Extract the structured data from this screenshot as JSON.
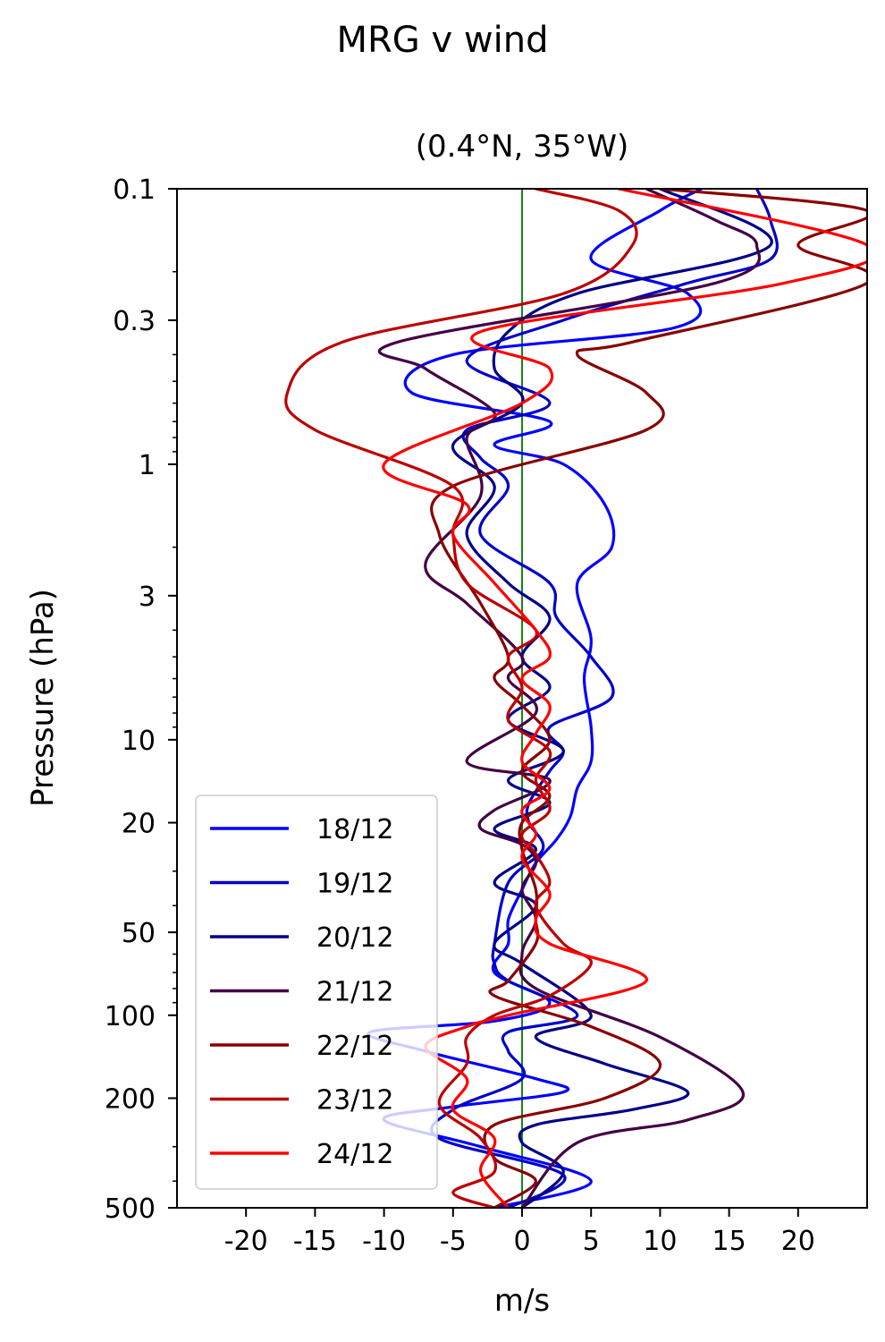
{
  "chart_data": {
    "type": "line",
    "title": "MRG v wind",
    "subtitle": "(0.4°N, 35°W)",
    "xlabel": "m/s",
    "ylabel": "Pressure (hPa)",
    "xlim": [
      -25,
      25
    ],
    "ylim": [
      500,
      0.1
    ],
    "yscale": "log",
    "y_inverted": true,
    "xticks": [
      -20,
      -15,
      -10,
      -5,
      0,
      5,
      10,
      15,
      20
    ],
    "xtick_labels": [
      "-20",
      "-15",
      "-10",
      "-5",
      "0",
      "5",
      "10",
      "15",
      "20"
    ],
    "yticks": [
      0.1,
      0.3,
      1,
      3,
      10,
      20,
      50,
      100,
      200,
      500
    ],
    "ytick_labels": [
      "0.1",
      "0.3",
      "1",
      "3",
      "10",
      "20",
      "50",
      "100",
      "200",
      "500"
    ],
    "zero_line": {
      "x": 0,
      "color": "#007700"
    },
    "grid": false,
    "legend_position": "lower-left",
    "series": [
      {
        "name": "18/12",
        "color": "#0000ff",
        "points": [
          [
            13,
            0.1
          ],
          [
            10,
            0.12
          ],
          [
            5,
            0.18
          ],
          [
            12,
            0.24
          ],
          [
            11,
            0.32
          ],
          [
            -5,
            0.4
          ],
          [
            -8,
            0.55
          ],
          [
            2,
            0.7
          ],
          [
            -2,
            0.85
          ],
          [
            3,
            1.0
          ],
          [
            6,
            1.4
          ],
          [
            6.5,
            2.0
          ],
          [
            4,
            2.7
          ],
          [
            5,
            4.3
          ],
          [
            4.5,
            6.0
          ],
          [
            5,
            9.0
          ],
          [
            5,
            12.0
          ],
          [
            4,
            15.0
          ],
          [
            3.5,
            19.0
          ],
          [
            2.5,
            23.0
          ],
          [
            1,
            28.0
          ],
          [
            0,
            35.0
          ],
          [
            -1,
            45.0
          ],
          [
            -1,
            55.0
          ],
          [
            -2,
            70.0
          ],
          [
            2,
            90.0
          ],
          [
            -2,
            105.0
          ],
          [
            -11,
            115.0
          ],
          [
            -7,
            135.0
          ],
          [
            1,
            170.0
          ],
          [
            3,
            190.0
          ],
          [
            -5,
            215.0
          ],
          [
            -10,
            240.0
          ],
          [
            -3,
            300.0
          ],
          [
            5,
            400.0
          ],
          [
            -2,
            500.0
          ]
        ]
      },
      {
        "name": "19/12",
        "color": "#0000cc",
        "points": [
          [
            17,
            0.1
          ],
          [
            18,
            0.13
          ],
          [
            18,
            0.18
          ],
          [
            12,
            0.22
          ],
          [
            3,
            0.3
          ],
          [
            -4,
            0.42
          ],
          [
            2,
            0.6
          ],
          [
            -4,
            0.75
          ],
          [
            -3,
            0.95
          ],
          [
            -1,
            1.2
          ],
          [
            -3,
            1.8
          ],
          [
            2,
            2.7
          ],
          [
            2.5,
            3.6
          ],
          [
            5,
            5.0
          ],
          [
            6.5,
            7.0
          ],
          [
            2,
            9.0
          ],
          [
            3,
            11.0
          ],
          [
            2,
            13.0
          ],
          [
            0.5,
            17.0
          ],
          [
            0.5,
            20.0
          ],
          [
            1.5,
            25.0
          ],
          [
            -1,
            33.0
          ],
          [
            -2,
            55.0
          ],
          [
            -2,
            65.0
          ],
          [
            -1,
            75.0
          ],
          [
            4,
            100.0
          ],
          [
            -1,
            115.0
          ],
          [
            -1,
            135.0
          ],
          [
            0,
            170.0
          ],
          [
            -5,
            220.0
          ],
          [
            -6,
            280.0
          ],
          [
            3,
            380.0
          ],
          [
            -1,
            500.0
          ]
        ]
      },
      {
        "name": "20/12",
        "color": "#000088",
        "points": [
          [
            10,
            0.1
          ],
          [
            18,
            0.16
          ],
          [
            4,
            0.24
          ],
          [
            -1,
            0.33
          ],
          [
            -2,
            0.45
          ],
          [
            0,
            0.6
          ],
          [
            -5,
            0.85
          ],
          [
            -2,
            1.2
          ],
          [
            -4,
            1.8
          ],
          [
            -1,
            2.7
          ],
          [
            2,
            3.6
          ],
          [
            0,
            5.0
          ],
          [
            2,
            6.5
          ],
          [
            -1,
            8.5
          ],
          [
            3,
            11.0
          ],
          [
            -1,
            14.0
          ],
          [
            2,
            17.0
          ],
          [
            -2,
            21.0
          ],
          [
            1,
            25.0
          ],
          [
            -2,
            33.0
          ],
          [
            1,
            40.0
          ],
          [
            -2,
            55.0
          ],
          [
            0,
            65.0
          ],
          [
            5,
            100.0
          ],
          [
            1,
            120.0
          ],
          [
            6,
            150.0
          ],
          [
            12,
            190.0
          ],
          [
            8,
            220.0
          ],
          [
            1,
            250.0
          ],
          [
            0,
            290.0
          ],
          [
            3,
            370.0
          ],
          [
            0,
            500.0
          ]
        ]
      },
      {
        "name": "21/12",
        "color": "#440044",
        "points": [
          [
            9,
            0.1
          ],
          [
            14,
            0.13
          ],
          [
            17,
            0.16
          ],
          [
            14,
            0.22
          ],
          [
            -9,
            0.36
          ],
          [
            -7,
            0.45
          ],
          [
            -2,
            0.65
          ],
          [
            -4,
            0.8
          ],
          [
            -3,
            1.3
          ],
          [
            -7,
            2.3
          ],
          [
            -4,
            3.2
          ],
          [
            0,
            5.0
          ],
          [
            -1,
            6.0
          ],
          [
            1,
            8.0
          ],
          [
            -4,
            12.0
          ],
          [
            2,
            14.0
          ],
          [
            -2,
            18.0
          ],
          [
            -3,
            21.0
          ],
          [
            0,
            24.0
          ],
          [
            1,
            28.0
          ],
          [
            0,
            35.0
          ],
          [
            1,
            45.0
          ],
          [
            0,
            60.0
          ],
          [
            1,
            80.0
          ],
          [
            10,
            120.0
          ],
          [
            16,
            190.0
          ],
          [
            12,
            240.0
          ],
          [
            4,
            290.0
          ],
          [
            0,
            500.0
          ]
        ]
      },
      {
        "name": "22/12",
        "color": "#880000",
        "points": [
          [
            10,
            0.1
          ],
          [
            25,
            0.12
          ],
          [
            20,
            0.16
          ],
          [
            25,
            0.22
          ],
          [
            8,
            0.36
          ],
          [
            4,
            0.4
          ],
          [
            9,
            0.55
          ],
          [
            9,
            0.75
          ],
          [
            -5,
            1.2
          ],
          [
            -6,
            1.8
          ],
          [
            -3,
            3.2
          ],
          [
            -1,
            5.0
          ],
          [
            -2,
            6.0
          ],
          [
            0,
            7.5
          ],
          [
            2,
            10.0
          ],
          [
            0,
            13.0
          ],
          [
            2,
            16.0
          ],
          [
            0,
            20.0
          ],
          [
            0,
            25.0
          ],
          [
            1,
            35.0
          ],
          [
            1,
            45.0
          ],
          [
            1,
            55.0
          ],
          [
            -1,
            75.0
          ],
          [
            -2,
            85.0
          ],
          [
            5,
            110.0
          ],
          [
            10,
            150.0
          ],
          [
            6,
            200.0
          ],
          [
            -2,
            250.0
          ],
          [
            -2,
            330.0
          ],
          [
            1,
            400.0
          ],
          [
            -2,
            500.0
          ]
        ]
      },
      {
        "name": "23/12",
        "color": "#bb0000",
        "points": [
          [
            1,
            0.1
          ],
          [
            7,
            0.12
          ],
          [
            8,
            0.16
          ],
          [
            3,
            0.24
          ],
          [
            -13,
            0.36
          ],
          [
            -17,
            0.55
          ],
          [
            -15,
            0.75
          ],
          [
            -5,
            1.2
          ],
          [
            -5,
            1.8
          ],
          [
            -4,
            2.7
          ],
          [
            1,
            4.0
          ],
          [
            -1,
            5.0
          ],
          [
            0,
            6.5
          ],
          [
            -1,
            8.5
          ],
          [
            2,
            11.0
          ],
          [
            1,
            14.0
          ],
          [
            2,
            18.0
          ],
          [
            0,
            22.0
          ],
          [
            1,
            26.0
          ],
          [
            2,
            33.0
          ],
          [
            1,
            40.0
          ],
          [
            3,
            55.0
          ],
          [
            5,
            65.0
          ],
          [
            2,
            85.0
          ],
          [
            -2,
            100.0
          ],
          [
            -4,
            120.0
          ],
          [
            -4,
            150.0
          ],
          [
            -6,
            210.0
          ],
          [
            -3,
            280.0
          ],
          [
            -2,
            370.0
          ],
          [
            -5,
            440.0
          ],
          [
            -2,
            500.0
          ]
        ]
      },
      {
        "name": "24/12",
        "color": "#ff0000",
        "points": [
          [
            7,
            0.1
          ],
          [
            25,
            0.16
          ],
          [
            19,
            0.22
          ],
          [
            -3,
            0.33
          ],
          [
            2,
            0.45
          ],
          [
            0,
            0.6
          ],
          [
            -10,
            1.0
          ],
          [
            -4,
            1.4
          ],
          [
            -5,
            1.8
          ],
          [
            -2,
            2.7
          ],
          [
            1,
            4.0
          ],
          [
            2,
            5.0
          ],
          [
            0,
            6.0
          ],
          [
            2,
            7.5
          ],
          [
            1,
            9.5
          ],
          [
            0,
            12.0
          ],
          [
            2,
            15.0
          ],
          [
            0,
            18.0
          ],
          [
            1,
            22.0
          ],
          [
            0,
            27.0
          ],
          [
            2,
            36.0
          ],
          [
            1,
            45.0
          ],
          [
            2,
            55.0
          ],
          [
            9,
            75.0
          ],
          [
            -1,
            100.0
          ],
          [
            -4,
            110.0
          ],
          [
            -7,
            130.0
          ],
          [
            -4,
            170.0
          ],
          [
            -5,
            220.0
          ],
          [
            -2,
            280.0
          ],
          [
            -3,
            370.0
          ],
          [
            -1,
            500.0
          ]
        ]
      }
    ]
  }
}
